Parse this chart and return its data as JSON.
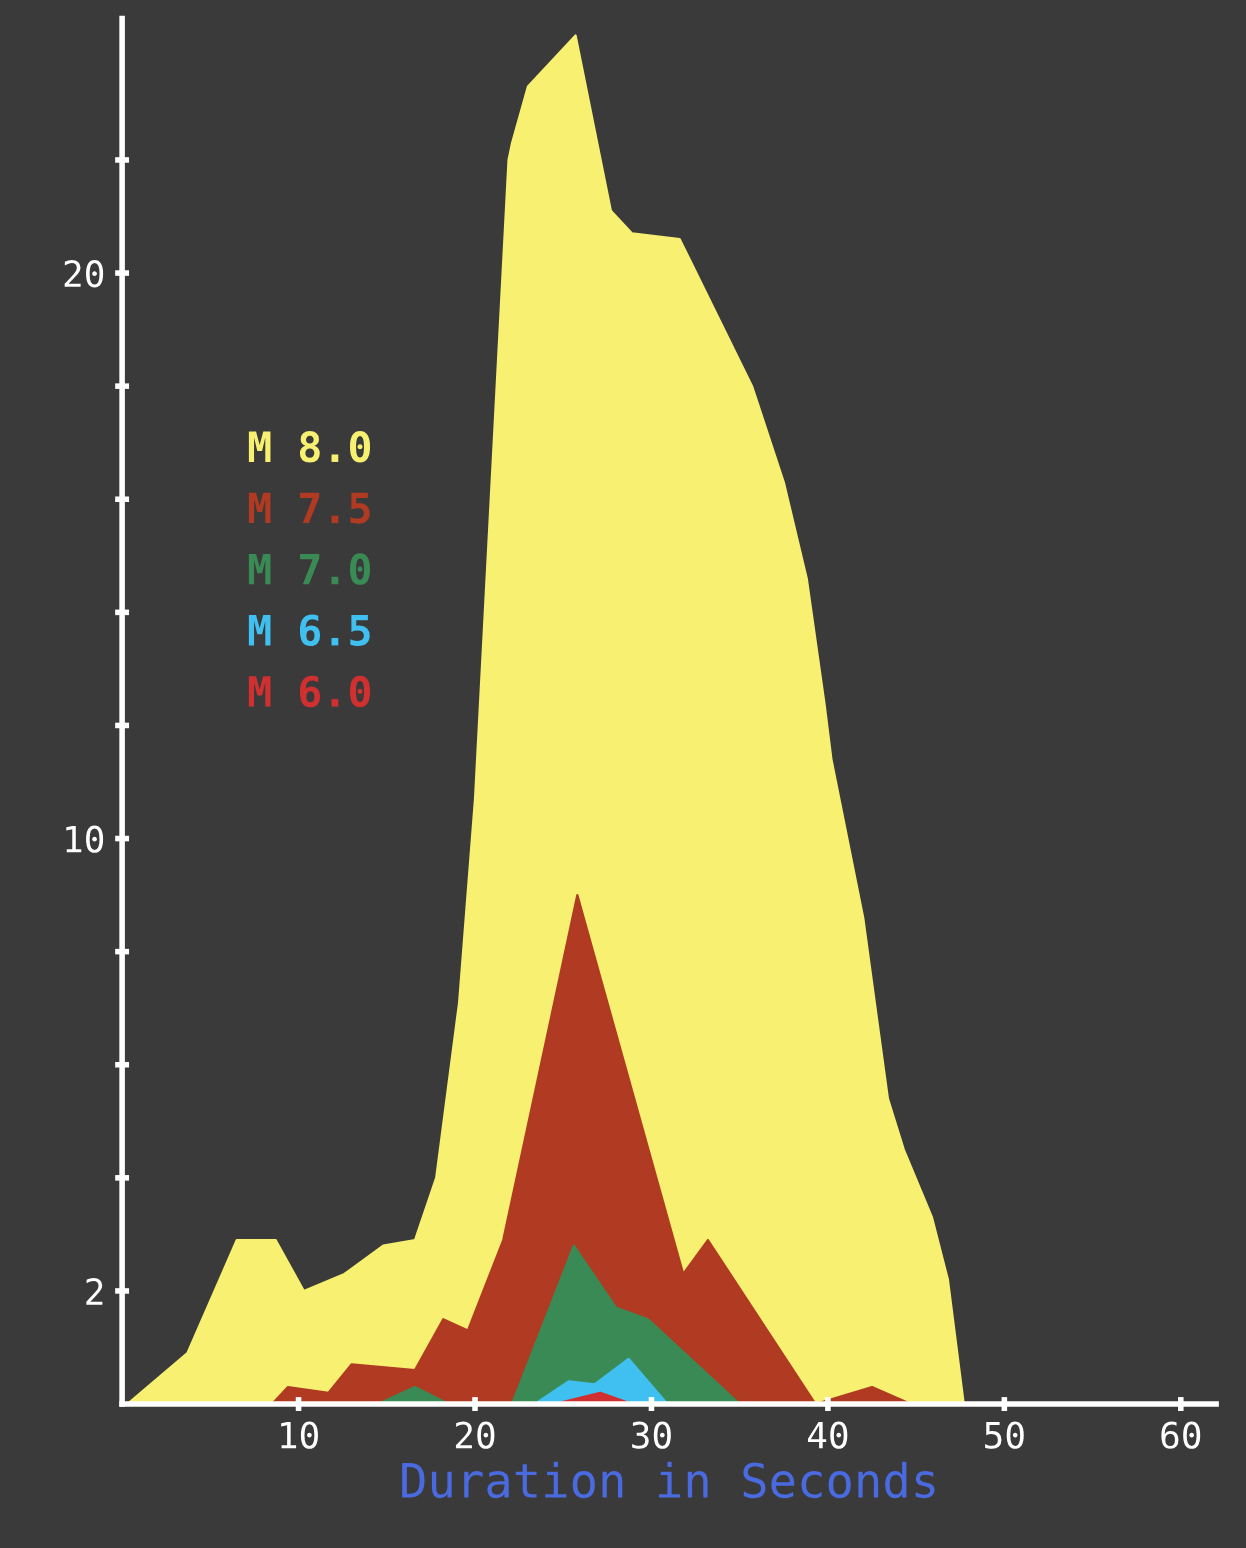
{
  "chart_data": {
    "type": "area",
    "xlabel": "Duration in Seconds",
    "xlim": [
      0,
      62
    ],
    "ylim": [
      0,
      24.5
    ],
    "xticks": [
      10,
      20,
      30,
      40,
      50,
      60
    ],
    "yticks": [
      {
        "value": 2,
        "label": "2"
      },
      {
        "value": 4,
        "label": null
      },
      {
        "value": 6,
        "label": null
      },
      {
        "value": 8,
        "label": null
      },
      {
        "value": 10,
        "label": "10"
      },
      {
        "value": 12,
        "label": null
      },
      {
        "value": 14,
        "label": null
      },
      {
        "value": 16,
        "label": null
      },
      {
        "value": 18,
        "label": null
      },
      {
        "value": 20,
        "label": "20"
      },
      {
        "value": 22,
        "label": null
      }
    ],
    "legend": "left",
    "grid": false,
    "series": [
      {
        "name": "M 8.0",
        "color": "#f8f070",
        "x": [
          0.3,
          3.7,
          6.5,
          8.7,
          10.3,
          12.6,
          14.8,
          16.6,
          17.8,
          19.1,
          20,
          21.9,
          22.1,
          23,
          25.7,
          27.7,
          28.9,
          31.6,
          35.7,
          37.5,
          38.8,
          39.8,
          40.2,
          42,
          43.4,
          44.3,
          45.9,
          46.8,
          47.7
        ],
        "values": [
          0,
          0.9,
          2.9,
          2.9,
          2,
          2.3,
          2.8,
          2.9,
          4,
          7.1,
          10.7,
          22,
          22.3,
          23.3,
          24.2,
          21.1,
          20.7,
          20.6,
          18,
          16.3,
          14.6,
          12.4,
          11.4,
          8.6,
          5.4,
          4.5,
          3.3,
          2.2,
          0
        ]
      },
      {
        "name": "M 7.5",
        "color": "#b03a22",
        "x": [
          8.5,
          9.4,
          11.7,
          13,
          16.6,
          18.2,
          19.6,
          21.6,
          25.8,
          31.8,
          33.2,
          39.3,
          42.5,
          44.7
        ],
        "values": [
          0,
          0.3,
          0.2,
          0.7,
          0.6,
          1.5,
          1.3,
          2.9,
          9,
          2.3,
          2.9,
          0,
          0.3,
          0
        ]
      },
      {
        "name": "M 7.0",
        "color": "#3a8a55",
        "x": [
          14.5,
          16.6,
          18.5,
          22.1,
          25.6,
          28,
          29.8,
          35
        ],
        "values": [
          0,
          0.3,
          0,
          0,
          2.8,
          1.7,
          1.5,
          0
        ]
      },
      {
        "name": "M 6.5",
        "color": "#40c0f0",
        "x": [
          23.4,
          25.3,
          26.8,
          28.7,
          30.9
        ],
        "values": [
          0,
          0.4,
          0.35,
          0.8,
          0
        ]
      },
      {
        "name": "M 6.0",
        "color": "#d03030",
        "x": [
          24.5,
          27.1,
          28.9
        ],
        "values": [
          0,
          0.2,
          0
        ]
      }
    ]
  }
}
